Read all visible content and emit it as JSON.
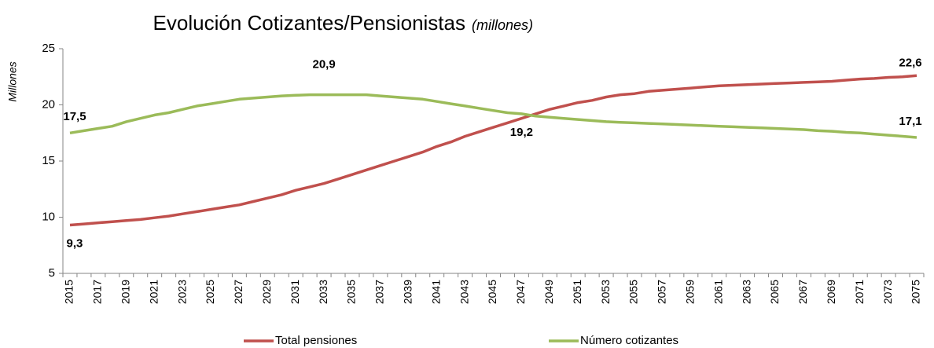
{
  "chart_data": {
    "type": "line",
    "title": "Evolución Cotizantes/Pensionistas",
    "subtitle": "(millones)",
    "y_label": "Millones",
    "categories": [
      "2015",
      null,
      "2017",
      null,
      "2019",
      null,
      "2021",
      null,
      "2023",
      null,
      "2025",
      null,
      "2027",
      null,
      "2029",
      null,
      "2031",
      null,
      "2033",
      null,
      "2035",
      null,
      "2037",
      null,
      "2039",
      null,
      "2041",
      null,
      "2043",
      null,
      "2045",
      null,
      "2047",
      null,
      "2049",
      null,
      "2051",
      null,
      "2053",
      null,
      "2055",
      null,
      "2057",
      null,
      "2059",
      null,
      "2061",
      null,
      "2063",
      null,
      "2065",
      null,
      "2067",
      null,
      "2069",
      null,
      "2071",
      null,
      "2073",
      null,
      "2075"
    ],
    "ylim": [
      5,
      25
    ],
    "yticks": [
      5,
      10,
      15,
      20,
      25
    ],
    "grid": false,
    "legend": "bottom",
    "series": [
      {
        "name": "Total pensiones",
        "color": "#c0504d",
        "values": [
          9.3,
          9.4,
          9.5,
          9.6,
          9.7,
          9.8,
          9.95,
          10.1,
          10.3,
          10.5,
          10.7,
          10.9,
          11.1,
          11.4,
          11.7,
          12.0,
          12.4,
          12.7,
          13.0,
          13.4,
          13.8,
          14.2,
          14.6,
          15.0,
          15.4,
          15.8,
          16.3,
          16.7,
          17.2,
          17.6,
          18.0,
          18.4,
          18.8,
          19.2,
          19.6,
          19.9,
          20.2,
          20.4,
          20.7,
          20.9,
          21.0,
          21.2,
          21.3,
          21.4,
          21.5,
          21.6,
          21.7,
          21.75,
          21.8,
          21.85,
          21.9,
          21.95,
          22.0,
          22.05,
          22.1,
          22.2,
          22.3,
          22.35,
          22.45,
          22.5,
          22.6
        ],
        "value_labels": [
          "9,3",
          null,
          null,
          null,
          null,
          null,
          null,
          null,
          null,
          null,
          null,
          null,
          null,
          null,
          null,
          null,
          null,
          null,
          null,
          null,
          null,
          null,
          null,
          null,
          null,
          null,
          null,
          null,
          null,
          null,
          null,
          null,
          null,
          null,
          null,
          null,
          null,
          null,
          null,
          null,
          null,
          null,
          null,
          null,
          null,
          null,
          null,
          null,
          null,
          null,
          null,
          null,
          null,
          null,
          null,
          null,
          null,
          null,
          null,
          null,
          "22,6"
        ]
      },
      {
        "name": "Número cotizantes",
        "color": "#9bbb59",
        "values": [
          17.5,
          17.7,
          17.9,
          18.1,
          18.5,
          18.8,
          19.1,
          19.3,
          19.6,
          19.9,
          20.1,
          20.3,
          20.5,
          20.6,
          20.7,
          20.8,
          20.85,
          20.9,
          20.9,
          20.9,
          20.9,
          20.9,
          20.8,
          20.7,
          20.6,
          20.5,
          20.3,
          20.1,
          19.9,
          19.7,
          19.5,
          19.3,
          19.2,
          19.0,
          18.9,
          18.8,
          18.7,
          18.6,
          18.5,
          18.45,
          18.4,
          18.35,
          18.3,
          18.25,
          18.2,
          18.15,
          18.1,
          18.05,
          18.0,
          17.95,
          17.9,
          17.85,
          17.8,
          17.7,
          17.65,
          17.55,
          17.5,
          17.4,
          17.3,
          17.2,
          17.1
        ],
        "value_labels": [
          "17,5",
          null,
          null,
          null,
          null,
          null,
          null,
          null,
          null,
          null,
          null,
          null,
          null,
          null,
          null,
          null,
          null,
          null,
          "20,9",
          null,
          null,
          null,
          null,
          null,
          null,
          null,
          null,
          null,
          null,
          null,
          null,
          null,
          "19,2",
          null,
          null,
          null,
          null,
          null,
          null,
          null,
          null,
          null,
          null,
          null,
          null,
          null,
          null,
          null,
          null,
          null,
          null,
          null,
          null,
          null,
          null,
          null,
          null,
          null,
          null,
          null,
          "17,1"
        ]
      }
    ]
  }
}
